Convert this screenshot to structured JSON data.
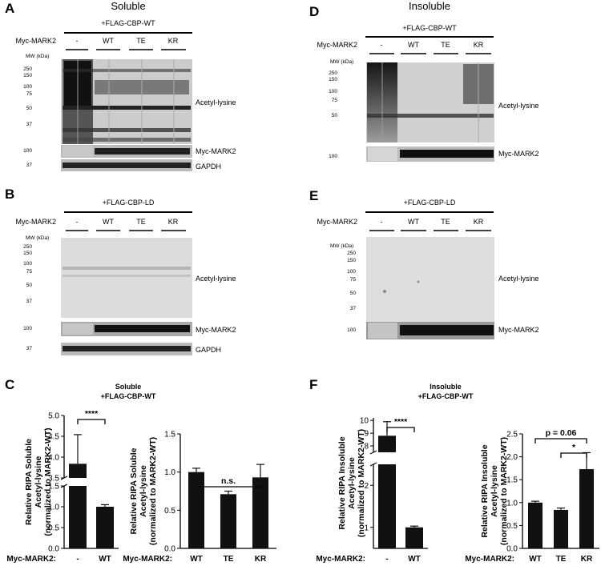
{
  "panels": {
    "A": {
      "letter": "A",
      "title": "Soluble",
      "construct": "+FLAG-CBP-WT",
      "row_label": "Myc-MARK2",
      "lanes": [
        "-",
        "WT",
        "TE",
        "KR"
      ],
      "mw_header": "MW (kDa)",
      "mw_main": [
        "250",
        "150",
        "100",
        "75",
        "50",
        "37"
      ],
      "blot_labels": [
        "Acetyl-lysine",
        "Myc-MARK2",
        "GAPDH"
      ],
      "strip_mw": [
        "100",
        "37"
      ]
    },
    "B": {
      "letter": "B",
      "construct": "+FLAG-CBP-LD",
      "row_label": "Myc-MARK2",
      "lanes": [
        "-",
        "WT",
        "TE",
        "KR"
      ],
      "mw_header": "MW (kDa)",
      "mw_main": [
        "250",
        "150",
        "100",
        "75",
        "50",
        "37"
      ],
      "blot_labels": [
        "Acetyl-lysine",
        "Myc-MARK2",
        "GAPDH"
      ],
      "strip_mw": [
        "100",
        "37"
      ]
    },
    "D": {
      "letter": "D",
      "title": "Insoluble",
      "construct": "+FLAG-CBP-WT",
      "row_label": "Myc-MARK2",
      "lanes": [
        "-",
        "WT",
        "TE",
        "KR"
      ],
      "mw_header": "MW (kDa)",
      "mw_main": [
        "250",
        "150",
        "100",
        "75",
        "50"
      ],
      "blot_labels": [
        "Acetyl-lysine",
        "Myc-MARK2"
      ],
      "strip_mw": [
        "100"
      ]
    },
    "E": {
      "letter": "E",
      "construct": "+FLAG-CBP-LD",
      "row_label": "Myc-MARK2",
      "lanes": [
        "-",
        "WT",
        "TE",
        "KR"
      ],
      "mw_header": "MW (kDa)",
      "mw_main": [
        "250",
        "150",
        "100",
        "75",
        "50",
        "37"
      ],
      "blot_labels": [
        "Acetyl-lysine",
        "Myc-MARK2"
      ],
      "strip_mw": [
        "100"
      ]
    },
    "C": {
      "letter": "C",
      "title_line1": "Soluble",
      "title_line2": "+FLAG-CBP-WT"
    },
    "F": {
      "letter": "F",
      "title_line1": "Insoluble",
      "title_line2": "+FLAG-CBP-WT"
    }
  },
  "chart_data": [
    {
      "type": "bar",
      "panel": "C-left",
      "categories": [
        "-",
        "WT"
      ],
      "values": [
        3.84,
        1.0
      ],
      "errors": [
        0.7,
        0.05
      ],
      "ylabel": [
        "Relative RIPA Soluble",
        "Acetyl-lysine",
        "(normalized to MARK2-WT)"
      ],
      "xlabel_prefix": "Myc-MARK2:",
      "axis_break": true,
      "ticks_lower": [
        "0.0",
        "0.5",
        "1.0",
        "1.5"
      ],
      "ticks_upper": [
        "3.5",
        "4.0",
        "4.5",
        "5.0"
      ],
      "significance": [
        {
          "from": "-",
          "to": "WT",
          "label": "****"
        }
      ]
    },
    {
      "type": "bar",
      "panel": "C-right",
      "categories": [
        "WT",
        "TE",
        "KR"
      ],
      "values": [
        1.0,
        0.71,
        0.93
      ],
      "errors": [
        0.05,
        0.04,
        0.17
      ],
      "ylim": [
        0,
        1.5
      ],
      "yticks": [
        "0.0",
        "0.5",
        "1.0",
        "1.5"
      ],
      "ylabel": [
        "Relative RIPA Soluble",
        "Acetyl-lysine",
        "(normalized to MARK2-WT)"
      ],
      "xlabel_prefix": "Myc-MARK2:",
      "significance": [
        {
          "from": "WT",
          "to": "KR",
          "label": "n.s."
        }
      ]
    },
    {
      "type": "bar",
      "panel": "F-left",
      "categories": [
        "-",
        "WT"
      ],
      "values": [
        8.8,
        1.0
      ],
      "errors": [
        1.1,
        0.03
      ],
      "ylabel": [
        "Relative RIPA Insoluble",
        "Acetyl-lysine",
        "(normalized to MARK2-WT)"
      ],
      "xlabel_prefix": "Myc-MARK2:",
      "axis_break": true,
      "ticks_lower": [
        "1",
        "2"
      ],
      "ticks_upper": [
        "8",
        "9",
        "10"
      ],
      "significance": [
        {
          "from": "-",
          "to": "WT",
          "label": "****"
        }
      ]
    },
    {
      "type": "bar",
      "panel": "F-right",
      "categories": [
        "WT",
        "TE",
        "KR"
      ],
      "values": [
        1.0,
        0.84,
        1.73
      ],
      "errors": [
        0.03,
        0.04,
        0.36
      ],
      "ylim": [
        0,
        2.5
      ],
      "yticks": [
        "0.0",
        "0.5",
        "1.0",
        "1.5",
        "2.0",
        "2.5"
      ],
      "ylabel": [
        "Relative RIPA Insoluble",
        "Acetyl-lysine",
        "(normalized to MARK2-WT)"
      ],
      "xlabel_prefix": "Myc-MARK2:",
      "significance": [
        {
          "from": "WT",
          "to": "KR",
          "label": "p = 0.06"
        },
        {
          "from": "TE",
          "to": "KR",
          "label": "*"
        }
      ]
    }
  ]
}
